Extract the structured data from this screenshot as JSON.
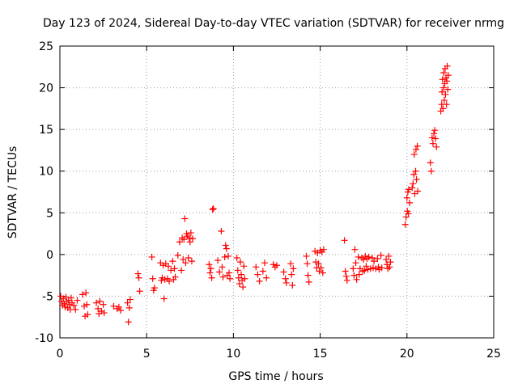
{
  "chart_data": {
    "type": "scatter",
    "title": "Day 123 of 2024, Sidereal Day-to-day VTEC variation (SDTVAR) for receiver nrmg",
    "xlabel": "GPS time / hours",
    "ylabel": "SDTVAR / TECUs",
    "xlim": [
      0,
      25
    ],
    "ylim": [
      -10,
      25
    ],
    "xticks": [
      "0",
      "5",
      "10",
      "15",
      "20",
      "25"
    ],
    "yticks": [
      "-10",
      "-5",
      "0",
      "5",
      "10",
      "15",
      "20",
      "25"
    ],
    "grid": true,
    "marker": "plus",
    "color": "#ff0000",
    "series": [
      {
        "name": "SDTVAR",
        "points": [
          [
            0.05,
            -5.0
          ],
          [
            0.1,
            -5.6
          ],
          [
            0.15,
            -6.1
          ],
          [
            0.2,
            -5.3
          ],
          [
            0.25,
            -5.9
          ],
          [
            0.3,
            -6.3
          ],
          [
            0.35,
            -5.1
          ],
          [
            0.4,
            -5.7
          ],
          [
            0.45,
            -6.4
          ],
          [
            0.5,
            -5.5
          ],
          [
            0.55,
            -6.0
          ],
          [
            0.6,
            -6.6
          ],
          [
            0.65,
            -5.2
          ],
          [
            0.7,
            -5.8
          ],
          [
            0.8,
            -6.1
          ],
          [
            0.9,
            -6.6
          ],
          [
            1.0,
            -5.5
          ],
          [
            1.3,
            -4.8
          ],
          [
            1.4,
            -6.2
          ],
          [
            1.45,
            -7.4
          ],
          [
            1.5,
            -4.6
          ],
          [
            1.55,
            -6.0
          ],
          [
            1.6,
            -7.2
          ],
          [
            2.1,
            -5.8
          ],
          [
            2.2,
            -6.5
          ],
          [
            2.25,
            -7.1
          ],
          [
            2.3,
            -5.6
          ],
          [
            2.4,
            -6.8
          ],
          [
            2.5,
            -6.0
          ],
          [
            2.55,
            -7.0
          ],
          [
            3.1,
            -6.2
          ],
          [
            3.3,
            -6.5
          ],
          [
            3.4,
            -6.3
          ],
          [
            3.5,
            -6.7
          ],
          [
            3.9,
            -5.8
          ],
          [
            3.95,
            -8.1
          ],
          [
            4.0,
            -6.4
          ],
          [
            4.05,
            -5.4
          ],
          [
            4.5,
            -2.3
          ],
          [
            4.55,
            -2.8
          ],
          [
            4.6,
            -4.4
          ],
          [
            5.3,
            -0.3
          ],
          [
            5.35,
            -2.9
          ],
          [
            5.4,
            -4.3
          ],
          [
            5.45,
            -4.0
          ],
          [
            5.8,
            -1.0
          ],
          [
            5.85,
            -3.1
          ],
          [
            5.9,
            -2.8
          ],
          [
            5.95,
            -1.3
          ],
          [
            6.0,
            -5.3
          ],
          [
            6.05,
            -3.0
          ],
          [
            6.1,
            -1.1
          ],
          [
            6.2,
            -2.9
          ],
          [
            6.25,
            -1.4
          ],
          [
            6.3,
            -3.2
          ],
          [
            6.4,
            -1.9
          ],
          [
            6.5,
            -0.8
          ],
          [
            6.55,
            -3.0
          ],
          [
            6.6,
            -1.7
          ],
          [
            6.65,
            -2.7
          ],
          [
            6.8,
            -0.1
          ],
          [
            6.9,
            1.5
          ],
          [
            7.0,
            -1.9
          ],
          [
            7.05,
            2.0
          ],
          [
            7.1,
            -0.6
          ],
          [
            7.15,
            1.8
          ],
          [
            7.2,
            4.3
          ],
          [
            7.25,
            -1.0
          ],
          [
            7.3,
            2.5
          ],
          [
            7.35,
            2.2
          ],
          [
            7.4,
            -0.4
          ],
          [
            7.45,
            2.0
          ],
          [
            7.5,
            1.5
          ],
          [
            7.55,
            2.6
          ],
          [
            7.6,
            -0.8
          ],
          [
            7.65,
            1.9
          ],
          [
            8.6,
            -1.2
          ],
          [
            8.65,
            -2.2
          ],
          [
            8.7,
            -1.7
          ],
          [
            8.75,
            -2.8
          ],
          [
            8.8,
            5.4
          ],
          [
            8.85,
            5.5
          ],
          [
            9.1,
            -0.7
          ],
          [
            9.2,
            -2.1
          ],
          [
            9.3,
            2.8
          ],
          [
            9.35,
            -1.5
          ],
          [
            9.4,
            -2.7
          ],
          [
            9.5,
            -0.3
          ],
          [
            9.55,
            1.1
          ],
          [
            9.6,
            0.7
          ],
          [
            9.65,
            -2.5
          ],
          [
            9.7,
            -0.2
          ],
          [
            9.75,
            -2.2
          ],
          [
            9.8,
            -2.9
          ],
          [
            10.2,
            -0.4
          ],
          [
            10.25,
            -1.9
          ],
          [
            10.3,
            -2.8
          ],
          [
            10.35,
            -3.5
          ],
          [
            10.4,
            -0.9
          ],
          [
            10.45,
            -2.4
          ],
          [
            10.5,
            -3.1
          ],
          [
            10.55,
            -3.9
          ],
          [
            10.6,
            -1.4
          ],
          [
            10.65,
            -2.9
          ],
          [
            11.3,
            -1.5
          ],
          [
            11.4,
            -2.4
          ],
          [
            11.5,
            -3.2
          ],
          [
            11.7,
            -2.0
          ],
          [
            11.8,
            -1.0
          ],
          [
            11.9,
            -2.8
          ],
          [
            12.3,
            -1.2
          ],
          [
            12.4,
            -1.5
          ],
          [
            12.5,
            -1.3
          ],
          [
            12.9,
            -2.1
          ],
          [
            13.0,
            -2.9
          ],
          [
            13.05,
            -3.4
          ],
          [
            13.3,
            -1.1
          ],
          [
            13.35,
            -2.4
          ],
          [
            13.4,
            -3.7
          ],
          [
            13.45,
            -1.7
          ],
          [
            14.2,
            -0.2
          ],
          [
            14.25,
            -1.1
          ],
          [
            14.3,
            -2.5
          ],
          [
            14.35,
            -3.3
          ],
          [
            14.7,
            0.4
          ],
          [
            14.75,
            -0.9
          ],
          [
            14.8,
            -1.6
          ],
          [
            14.85,
            0.2
          ],
          [
            14.9,
            -1.1
          ],
          [
            14.95,
            -2.0
          ],
          [
            15.0,
            0.5
          ],
          [
            15.05,
            -1.6
          ],
          [
            15.1,
            0.3
          ],
          [
            15.15,
            -2.2
          ],
          [
            15.2,
            0.6
          ],
          [
            16.4,
            1.7
          ],
          [
            16.45,
            -2.0
          ],
          [
            16.5,
            -2.6
          ],
          [
            16.55,
            -3.1
          ],
          [
            16.9,
            -1.7
          ],
          [
            16.95,
            -2.5
          ],
          [
            17.0,
            0.6
          ],
          [
            17.05,
            -1.0
          ],
          [
            17.1,
            -3.0
          ],
          [
            17.2,
            -0.3
          ],
          [
            17.25,
            -2.4
          ],
          [
            17.3,
            -1.7
          ],
          [
            17.4,
            -0.4
          ],
          [
            17.45,
            -2.0
          ],
          [
            17.5,
            -0.6
          ],
          [
            17.55,
            -1.9
          ],
          [
            17.6,
            -0.2
          ],
          [
            17.65,
            -1.4
          ],
          [
            17.7,
            -0.5
          ],
          [
            17.75,
            -1.8
          ],
          [
            17.8,
            -0.3
          ],
          [
            17.9,
            -1.7
          ],
          [
            18.0,
            -0.4
          ],
          [
            18.05,
            -1.6
          ],
          [
            18.1,
            -0.8
          ],
          [
            18.2,
            -1.7
          ],
          [
            18.3,
            -0.5
          ],
          [
            18.35,
            -1.5
          ],
          [
            18.4,
            -1.8
          ],
          [
            18.5,
            -0.1
          ],
          [
            18.55,
            -1.6
          ],
          [
            18.8,
            -0.6
          ],
          [
            18.85,
            -1.2
          ],
          [
            18.9,
            -1.7
          ],
          [
            18.95,
            -0.2
          ],
          [
            19.0,
            -1.5
          ],
          [
            19.05,
            -0.9
          ],
          [
            19.9,
            3.6
          ],
          [
            19.95,
            4.5
          ],
          [
            20.0,
            6.8
          ],
          [
            20.02,
            5.2
          ],
          [
            20.05,
            7.5
          ],
          [
            20.08,
            4.9
          ],
          [
            20.1,
            7.8
          ],
          [
            20.15,
            6.2
          ],
          [
            20.3,
            8.0
          ],
          [
            20.35,
            8.5
          ],
          [
            20.4,
            9.6
          ],
          [
            20.42,
            12.0
          ],
          [
            20.45,
            7.3
          ],
          [
            20.5,
            10.0
          ],
          [
            20.52,
            12.6
          ],
          [
            20.55,
            9.0
          ],
          [
            20.6,
            13.0
          ],
          [
            20.62,
            7.6
          ],
          [
            21.35,
            11.0
          ],
          [
            21.4,
            10.0
          ],
          [
            21.45,
            14.0
          ],
          [
            21.5,
            13.3
          ],
          [
            21.55,
            14.5
          ],
          [
            21.6,
            14.9
          ],
          [
            21.65,
            13.9
          ],
          [
            21.7,
            12.9
          ],
          [
            21.95,
            17.2
          ],
          [
            22.0,
            18.0
          ],
          [
            22.02,
            19.5
          ],
          [
            22.05,
            21.0
          ],
          [
            22.08,
            17.5
          ],
          [
            22.1,
            20.0
          ],
          [
            22.12,
            21.8
          ],
          [
            22.15,
            18.5
          ],
          [
            22.18,
            20.5
          ],
          [
            22.2,
            22.3
          ],
          [
            22.22,
            19.2
          ],
          [
            22.25,
            21.2
          ],
          [
            22.28,
            18.0
          ],
          [
            22.3,
            20.8
          ],
          [
            22.32,
            22.6
          ],
          [
            22.35,
            19.8
          ],
          [
            22.38,
            21.5
          ]
        ]
      }
    ]
  }
}
